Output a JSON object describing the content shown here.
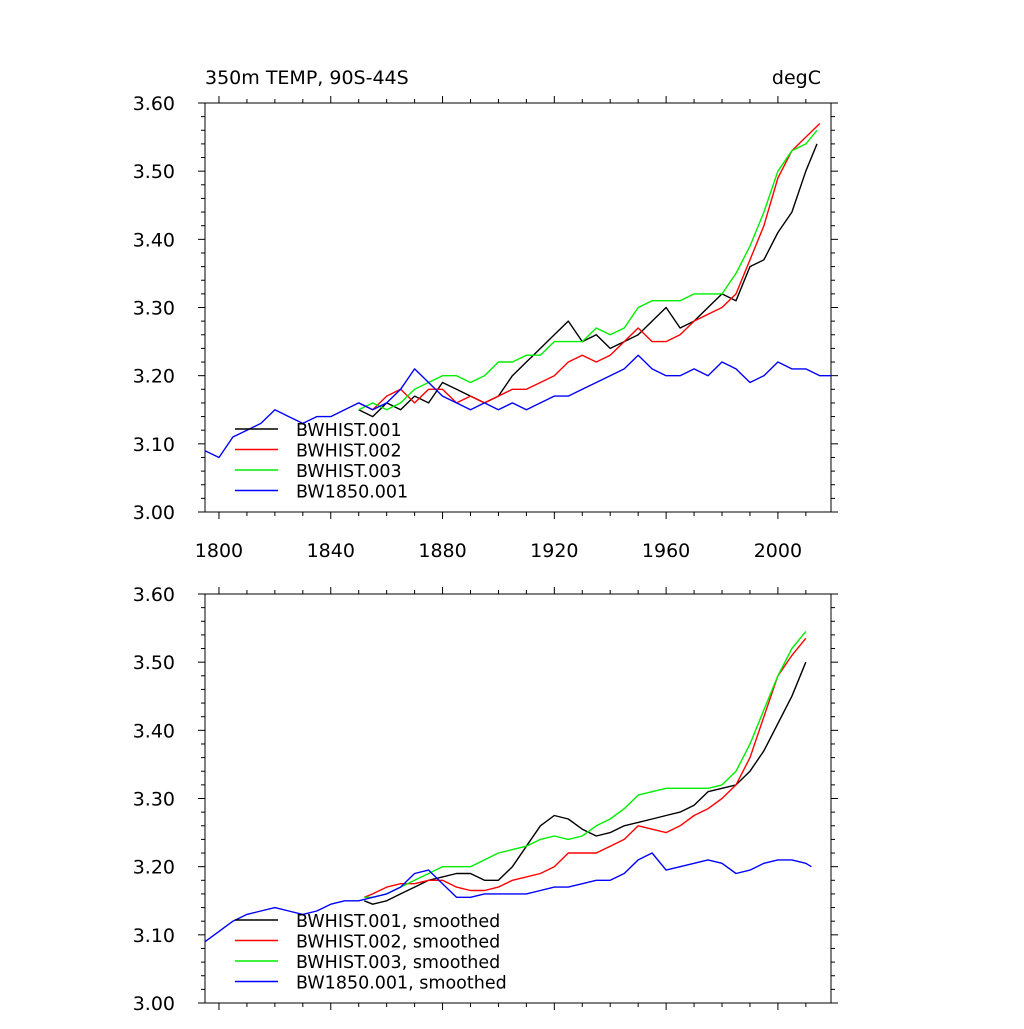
{
  "chart_data": [
    {
      "type": "line",
      "title_left": "350m TEMP, 90S-44S",
      "title_right": "degC",
      "xlim": [
        1795,
        2019
      ],
      "ylim": [
        3.0,
        3.6
      ],
      "xticks": [
        1800,
        1840,
        1880,
        1920,
        1960,
        2000
      ],
      "xtick_labels": [
        "1800",
        "1840",
        "1880",
        "1920",
        "1960",
        "2000"
      ],
      "yticks": [
        3.0,
        3.1,
        3.2,
        3.3,
        3.4,
        3.5,
        3.6
      ],
      "ytick_labels": [
        "3.00",
        "3.10",
        "3.20",
        "3.30",
        "3.40",
        "3.50",
        "3.60"
      ],
      "legend_position": "bottom-left",
      "series": [
        {
          "name": "BWHIST.001",
          "color": "#000000",
          "x": [
            1850,
            1855,
            1860,
            1865,
            1870,
            1875,
            1880,
            1885,
            1890,
            1895,
            1900,
            1905,
            1910,
            1915,
            1920,
            1925,
            1930,
            1935,
            1940,
            1945,
            1950,
            1955,
            1960,
            1965,
            1970,
            1975,
            1980,
            1985,
            1990,
            1995,
            2000,
            2005,
            2010,
            2014
          ],
          "y": [
            3.15,
            3.14,
            3.16,
            3.15,
            3.17,
            3.16,
            3.19,
            3.18,
            3.17,
            3.16,
            3.17,
            3.2,
            3.22,
            3.24,
            3.26,
            3.28,
            3.25,
            3.26,
            3.24,
            3.25,
            3.26,
            3.28,
            3.3,
            3.27,
            3.28,
            3.3,
            3.32,
            3.31,
            3.36,
            3.37,
            3.41,
            3.44,
            3.5,
            3.54
          ]
        },
        {
          "name": "BWHIST.002",
          "color": "#ff0000",
          "x": [
            1850,
            1855,
            1860,
            1865,
            1870,
            1875,
            1880,
            1885,
            1890,
            1895,
            1900,
            1905,
            1910,
            1915,
            1920,
            1925,
            1930,
            1935,
            1940,
            1945,
            1950,
            1955,
            1960,
            1965,
            1970,
            1975,
            1980,
            1985,
            1990,
            1995,
            2000,
            2005,
            2010,
            2015
          ],
          "y": [
            3.16,
            3.15,
            3.17,
            3.18,
            3.16,
            3.18,
            3.18,
            3.16,
            3.17,
            3.16,
            3.17,
            3.18,
            3.18,
            3.19,
            3.2,
            3.22,
            3.23,
            3.22,
            3.23,
            3.25,
            3.27,
            3.25,
            3.25,
            3.26,
            3.28,
            3.29,
            3.3,
            3.32,
            3.37,
            3.42,
            3.49,
            3.53,
            3.55,
            3.57
          ]
        },
        {
          "name": "BWHIST.003",
          "color": "#00ee00",
          "x": [
            1850,
            1855,
            1860,
            1865,
            1870,
            1875,
            1880,
            1885,
            1890,
            1895,
            1900,
            1905,
            1910,
            1915,
            1920,
            1925,
            1930,
            1935,
            1940,
            1945,
            1950,
            1955,
            1960,
            1965,
            1970,
            1975,
            1980,
            1985,
            1990,
            1995,
            2000,
            2005,
            2010,
            2014
          ],
          "y": [
            3.15,
            3.16,
            3.15,
            3.16,
            3.18,
            3.19,
            3.2,
            3.2,
            3.19,
            3.2,
            3.22,
            3.22,
            3.23,
            3.23,
            3.25,
            3.25,
            3.25,
            3.27,
            3.26,
            3.27,
            3.3,
            3.31,
            3.31,
            3.31,
            3.32,
            3.32,
            3.32,
            3.35,
            3.39,
            3.44,
            3.5,
            3.53,
            3.54,
            3.56
          ]
        },
        {
          "name": "BW1850.001",
          "color": "#0000ff",
          "x": [
            1795,
            1800,
            1805,
            1810,
            1815,
            1820,
            1825,
            1830,
            1835,
            1840,
            1845,
            1850,
            1855,
            1860,
            1865,
            1870,
            1875,
            1880,
            1885,
            1890,
            1895,
            1900,
            1905,
            1910,
            1915,
            1920,
            1925,
            1930,
            1935,
            1940,
            1945,
            1950,
            1955,
            1960,
            1965,
            1970,
            1975,
            1980,
            1985,
            1990,
            1995,
            2000,
            2005,
            2010,
            2015,
            2019
          ],
          "y": [
            3.09,
            3.08,
            3.11,
            3.12,
            3.13,
            3.15,
            3.14,
            3.13,
            3.14,
            3.14,
            3.15,
            3.16,
            3.15,
            3.16,
            3.18,
            3.21,
            3.19,
            3.17,
            3.16,
            3.15,
            3.16,
            3.15,
            3.16,
            3.15,
            3.16,
            3.17,
            3.17,
            3.18,
            3.19,
            3.2,
            3.21,
            3.23,
            3.21,
            3.2,
            3.2,
            3.21,
            3.2,
            3.22,
            3.21,
            3.19,
            3.2,
            3.22,
            3.21,
            3.21,
            3.2,
            3.2
          ]
        }
      ]
    },
    {
      "type": "line",
      "xlim": [
        1795,
        2019
      ],
      "ylim": [
        3.0,
        3.6
      ],
      "xticks": [
        1800,
        1840,
        1880,
        1920,
        1960,
        2000
      ],
      "yticks": [
        3.0,
        3.1,
        3.2,
        3.3,
        3.4,
        3.5,
        3.6
      ],
      "ytick_labels": [
        "3.00",
        "3.10",
        "3.20",
        "3.30",
        "3.40",
        "3.50",
        "3.60"
      ],
      "legend_position": "bottom-left",
      "series": [
        {
          "name": "BWHIST.001, smoothed",
          "color": "#000000",
          "x": [
            1852,
            1855,
            1860,
            1865,
            1870,
            1875,
            1880,
            1885,
            1890,
            1895,
            1900,
            1905,
            1910,
            1915,
            1920,
            1925,
            1930,
            1935,
            1940,
            1945,
            1950,
            1955,
            1960,
            1965,
            1970,
            1975,
            1980,
            1985,
            1990,
            1995,
            2000,
            2005,
            2010
          ],
          "y": [
            3.15,
            3.145,
            3.15,
            3.16,
            3.17,
            3.18,
            3.185,
            3.19,
            3.19,
            3.18,
            3.18,
            3.2,
            3.23,
            3.26,
            3.275,
            3.27,
            3.255,
            3.245,
            3.25,
            3.26,
            3.265,
            3.27,
            3.275,
            3.28,
            3.29,
            3.31,
            3.315,
            3.32,
            3.34,
            3.37,
            3.41,
            3.45,
            3.5
          ]
        },
        {
          "name": "BWHIST.002, smoothed",
          "color": "#ff0000",
          "x": [
            1852,
            1855,
            1860,
            1865,
            1870,
            1875,
            1880,
            1885,
            1890,
            1895,
            1900,
            1905,
            1910,
            1915,
            1920,
            1925,
            1930,
            1935,
            1940,
            1945,
            1950,
            1955,
            1960,
            1965,
            1970,
            1975,
            1980,
            1985,
            1990,
            1995,
            2000,
            2005,
            2010
          ],
          "y": [
            3.155,
            3.16,
            3.17,
            3.175,
            3.175,
            3.18,
            3.18,
            3.17,
            3.165,
            3.165,
            3.17,
            3.18,
            3.185,
            3.19,
            3.2,
            3.22,
            3.22,
            3.22,
            3.23,
            3.24,
            3.26,
            3.255,
            3.25,
            3.26,
            3.275,
            3.285,
            3.3,
            3.32,
            3.36,
            3.42,
            3.48,
            3.51,
            3.535
          ]
        },
        {
          "name": "BWHIST.003, smoothed",
          "color": "#00ee00",
          "x": [
            1852,
            1855,
            1860,
            1865,
            1870,
            1875,
            1880,
            1885,
            1890,
            1895,
            1900,
            1905,
            1910,
            1915,
            1920,
            1925,
            1930,
            1935,
            1940,
            1945,
            1950,
            1955,
            1960,
            1965,
            1970,
            1975,
            1980,
            1985,
            1990,
            1995,
            2000,
            2005,
            2010
          ],
          "y": [
            3.155,
            3.155,
            3.16,
            3.17,
            3.18,
            3.19,
            3.2,
            3.2,
            3.2,
            3.21,
            3.22,
            3.225,
            3.23,
            3.24,
            3.245,
            3.24,
            3.245,
            3.26,
            3.27,
            3.285,
            3.305,
            3.31,
            3.315,
            3.315,
            3.315,
            3.315,
            3.32,
            3.34,
            3.38,
            3.43,
            3.48,
            3.52,
            3.545
          ]
        },
        {
          "name": "BW1850.001, smoothed",
          "color": "#0000ff",
          "x": [
            1795,
            1800,
            1805,
            1810,
            1815,
            1820,
            1825,
            1830,
            1835,
            1840,
            1845,
            1850,
            1855,
            1860,
            1865,
            1870,
            1875,
            1880,
            1885,
            1890,
            1895,
            1900,
            1905,
            1910,
            1915,
            1920,
            1925,
            1930,
            1935,
            1940,
            1945,
            1950,
            1955,
            1960,
            1965,
            1970,
            1975,
            1980,
            1985,
            1990,
            1995,
            2000,
            2005,
            2010,
            2012
          ],
          "y": [
            3.09,
            3.105,
            3.12,
            3.13,
            3.135,
            3.14,
            3.135,
            3.13,
            3.135,
            3.145,
            3.15,
            3.15,
            3.155,
            3.16,
            3.17,
            3.19,
            3.195,
            3.175,
            3.155,
            3.155,
            3.16,
            3.16,
            3.16,
            3.16,
            3.165,
            3.17,
            3.17,
            3.175,
            3.18,
            3.18,
            3.19,
            3.21,
            3.22,
            3.195,
            3.2,
            3.205,
            3.21,
            3.205,
            3.19,
            3.195,
            3.205,
            3.21,
            3.21,
            3.205,
            3.2
          ]
        }
      ]
    }
  ]
}
